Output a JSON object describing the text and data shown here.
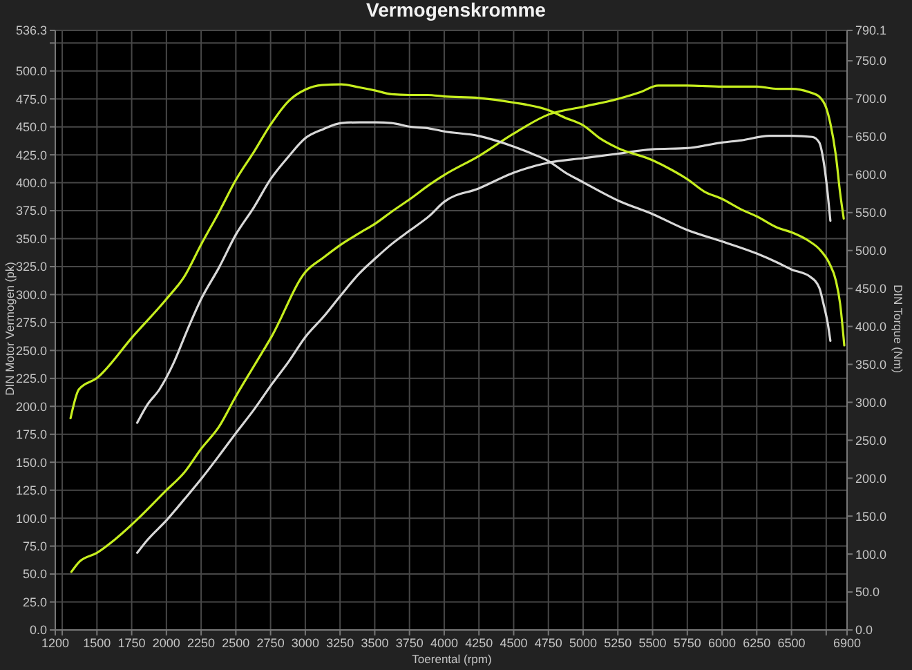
{
  "chart_data": {
    "type": "line",
    "title": "Vermogenskromme",
    "xlabel": "Toerental (rpm)",
    "ylabel": "DIN Motor Vermogen (pk)",
    "y2label": "DIN Torque (Nm)",
    "xlim": [
      1200,
      6900
    ],
    "xticks": [
      1200,
      {
        "value": 1250,
        "label": null
      },
      1500,
      1750,
      2000,
      2250,
      2500,
      2750,
      3000,
      3250,
      3500,
      3750,
      4000,
      4250,
      4500,
      4750,
      5000,
      5250,
      5500,
      5750,
      6000,
      6250,
      6500,
      {
        "value": 6750,
        "label": null
      },
      6900
    ],
    "ylim": [
      0,
      536.3
    ],
    "yticks": [
      {
        "value": 0,
        "label": "0.0"
      },
      {
        "value": 25,
        "label": "25.0"
      },
      {
        "value": 50,
        "label": "50.0"
      },
      {
        "value": 75,
        "label": "75.0"
      },
      {
        "value": 100,
        "label": "100.0"
      },
      {
        "value": 125,
        "label": "125.0"
      },
      {
        "value": 150,
        "label": "150.0"
      },
      {
        "value": 175,
        "label": "175.0"
      },
      {
        "value": 200,
        "label": "200.0"
      },
      {
        "value": 225,
        "label": "225.0"
      },
      {
        "value": 250,
        "label": "250.0"
      },
      {
        "value": 275,
        "label": "275.0"
      },
      {
        "value": 300,
        "label": "300.0"
      },
      {
        "value": 325,
        "label": "325.0"
      },
      {
        "value": 350,
        "label": "350.0"
      },
      {
        "value": 375,
        "label": "375.0"
      },
      {
        "value": 400,
        "label": "400.0"
      },
      {
        "value": 425,
        "label": "425.0"
      },
      {
        "value": 450,
        "label": "450.0"
      },
      {
        "value": 475,
        "label": "475.0"
      },
      {
        "value": 500,
        "label": "500.0"
      },
      {
        "value": 525,
        "label": null
      },
      536.3
    ],
    "y2lim": [
      0,
      790.1
    ],
    "y2ticks": [
      {
        "value": 0,
        "label": "0.0"
      },
      {
        "value": 50,
        "label": "50.0"
      },
      {
        "value": 100,
        "label": "100.0"
      },
      {
        "value": 150,
        "label": "150.0"
      },
      {
        "value": 200,
        "label": "200.0"
      },
      {
        "value": 250,
        "label": "250.0"
      },
      {
        "value": 300,
        "label": "300.0"
      },
      {
        "value": 350,
        "label": "350.0"
      },
      {
        "value": 400,
        "label": "400.0"
      },
      {
        "value": 450,
        "label": "450.0"
      },
      {
        "value": 500,
        "label": "500.0"
      },
      {
        "value": 550,
        "label": "550.0"
      },
      {
        "value": 600,
        "label": "600.0"
      },
      {
        "value": 650,
        "label": "650.0"
      },
      {
        "value": 700,
        "label": "700.0"
      },
      {
        "value": 750,
        "label": "750.0"
      },
      790.1
    ],
    "grid": true,
    "marker": "none",
    "line_style": "solid",
    "series": [
      {
        "color": "#c6ee1e",
        "x": [
          1316,
          1373,
          1500,
          1630,
          1800,
          2000,
          2130,
          2250,
          2380,
          2500,
          2630,
          2760,
          3000,
          3130,
          3260,
          3390,
          3510,
          3620,
          3760,
          3890,
          4000,
          4250,
          4500,
          4750,
          5000,
          5250,
          5410,
          5540,
          5750,
          6000,
          6250,
          6400,
          6500,
          6630,
          6700,
          6750,
          6780,
          6820,
          6850,
          6876
        ],
        "values": [
          52,
          61,
          69,
          81,
          100,
          125,
          141,
          162,
          182,
          209,
          236,
          263,
          320,
          333,
          345,
          355,
          364,
          374,
          386,
          398,
          407,
          424,
          444,
          461,
          468,
          475,
          481,
          487,
          487,
          486,
          486,
          484,
          484,
          481,
          477,
          467,
          453,
          424,
          391,
          368
        ]
      },
      {
        "color": "#d8d8d8",
        "x": [
          1790,
          1860,
          2000,
          2130,
          2250,
          2380,
          2500,
          2630,
          2760,
          2880,
          3000,
          3130,
          3260,
          3390,
          3510,
          3620,
          3760,
          3890,
          4000,
          4250,
          4500,
          4750,
          5000,
          5250,
          5500,
          5750,
          6000,
          6140,
          6340,
          6500,
          6650,
          6700,
          6730,
          6760,
          6780
        ],
        "values": [
          69,
          80,
          98,
          117,
          135,
          156,
          176,
          197,
          220,
          240,
          262,
          280,
          300,
          319,
          333,
          345,
          358,
          370,
          383,
          395,
          409,
          418,
          422,
          426,
          430,
          431,
          436,
          438,
          442,
          442,
          441,
          436,
          420,
          391,
          366
        ]
      },
      {
        "color": "#c6ee1e",
        "axis": "y2",
        "x": [
          1310,
          1370,
          1500,
          1760,
          2000,
          2130,
          2250,
          2380,
          2500,
          2630,
          2750,
          2880,
          3000,
          3120,
          3260,
          3390,
          3500,
          3620,
          3750,
          3880,
          4000,
          4250,
          4500,
          4750,
          4870,
          5000,
          5120,
          5250,
          5500,
          5640,
          5750,
          5870,
          6000,
          6140,
          6250,
          6400,
          6500,
          6630,
          6700,
          6770,
          6820,
          6850,
          6880
        ],
        "values": [
          279,
          317,
          332,
          387,
          436,
          466,
          508,
          551,
          593,
          630,
          666,
          697,
          712,
          718,
          719,
          715,
          711,
          706,
          705,
          705,
          703,
          701,
          695,
          685,
          675,
          665,
          648,
          635,
          619,
          606,
          594,
          578,
          568,
          554,
          545,
          530,
          524,
          512,
          502,
          484,
          460,
          430,
          375
        ]
      },
      {
        "color": "#d8d8d8",
        "axis": "y2",
        "x": [
          1790,
          1860,
          1950,
          2050,
          2150,
          2250,
          2380,
          2500,
          2630,
          2750,
          2880,
          3000,
          3130,
          3260,
          3390,
          3510,
          3620,
          3760,
          3890,
          4000,
          4250,
          4500,
          4640,
          4750,
          4870,
          5000,
          5250,
          5500,
          5750,
          6000,
          6250,
          6400,
          6500,
          6630,
          6700,
          6730,
          6760,
          6780
        ],
        "values": [
          273,
          296,
          317,
          351,
          395,
          436,
          478,
          521,
          557,
          594,
          624,
          648,
          660,
          668,
          669,
          669,
          668,
          663,
          661,
          657,
          651,
          637,
          627,
          618,
          603,
          590,
          566,
          548,
          527,
          512,
          496,
          484,
          475,
          466,
          451,
          430,
          405,
          381
        ]
      }
    ]
  }
}
